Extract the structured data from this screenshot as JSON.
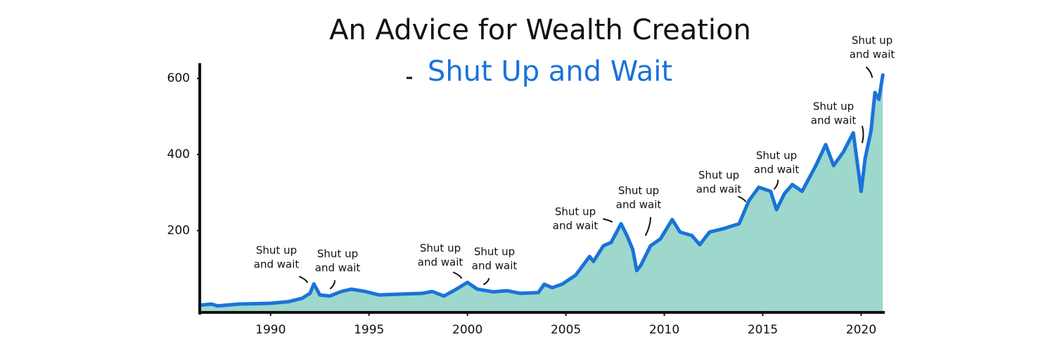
{
  "chart_data": {
    "type": "area",
    "title": "An Advice for Wealth Creation",
    "subtitle": "Shut Up and Wait",
    "x": [
      1986.4,
      1987.0,
      1987.3,
      1988.4,
      1990.0,
      1990.9,
      1991.6,
      1992.0,
      1992.2,
      1992.5,
      1993.0,
      1993.6,
      1994.1,
      1994.8,
      1995.5,
      1996.6,
      1997.7,
      1998.2,
      1998.8,
      1999.3,
      2000.0,
      2000.5,
      2001.3,
      2002.0,
      2002.7,
      2003.6,
      2003.9,
      2004.3,
      2004.8,
      2005.5,
      2006.2,
      2006.4,
      2006.9,
      2007.3,
      2007.8,
      2008.1,
      2008.4,
      2008.6,
      2008.8,
      2009.3,
      2009.8,
      2010.4,
      2010.8,
      2011.4,
      2011.8,
      2012.3,
      2013.0,
      2013.8,
      2014.3,
      2014.8,
      2015.4,
      2015.7,
      2016.1,
      2016.5,
      2017.0,
      2017.7,
      2018.2,
      2018.6,
      2019.1,
      2019.6,
      2019.8,
      2020.0,
      2020.2,
      2020.5,
      2020.7,
      2020.9,
      2021.1
    ],
    "values": [
      4,
      7,
      2,
      7,
      9,
      13,
      22,
      35,
      60,
      31,
      28,
      40,
      46,
      40,
      31,
      33,
      35,
      40,
      28,
      42,
      64,
      46,
      39,
      42,
      35,
      37,
      59,
      50,
      59,
      83,
      132,
      119,
      160,
      169,
      218,
      187,
      150,
      95,
      108,
      160,
      178,
      229,
      196,
      187,
      163,
      196,
      205,
      218,
      279,
      314,
      303,
      255,
      297,
      321,
      303,
      371,
      426,
      371,
      407,
      457,
      380,
      303,
      389,
      462,
      563,
      545,
      609
    ],
    "line_color": "#1a73d9",
    "fill_color": "#9ed8cc",
    "xlim": [
      1986.4,
      2021.2
    ],
    "xticks": [
      1990,
      1995,
      2000,
      2005,
      2010,
      2015,
      2020
    ],
    "ylim": [
      -15,
      640
    ],
    "yticks": [
      200,
      400,
      600
    ],
    "annotations": [
      [
        "Shut up",
        "and wait"
      ],
      [
        "Shut up",
        "and wait"
      ],
      [
        "Shut up",
        "and wait"
      ],
      [
        "Shut up",
        "and wait"
      ],
      [
        "Shut up",
        "and wait"
      ],
      [
        "Shut up",
        "and wait"
      ],
      [
        "Shut up",
        "and wait"
      ],
      [
        "Shut up",
        "and wait"
      ],
      [
        "Shut up",
        "and wait"
      ],
      [
        "Shut up",
        "and wait"
      ]
    ]
  }
}
